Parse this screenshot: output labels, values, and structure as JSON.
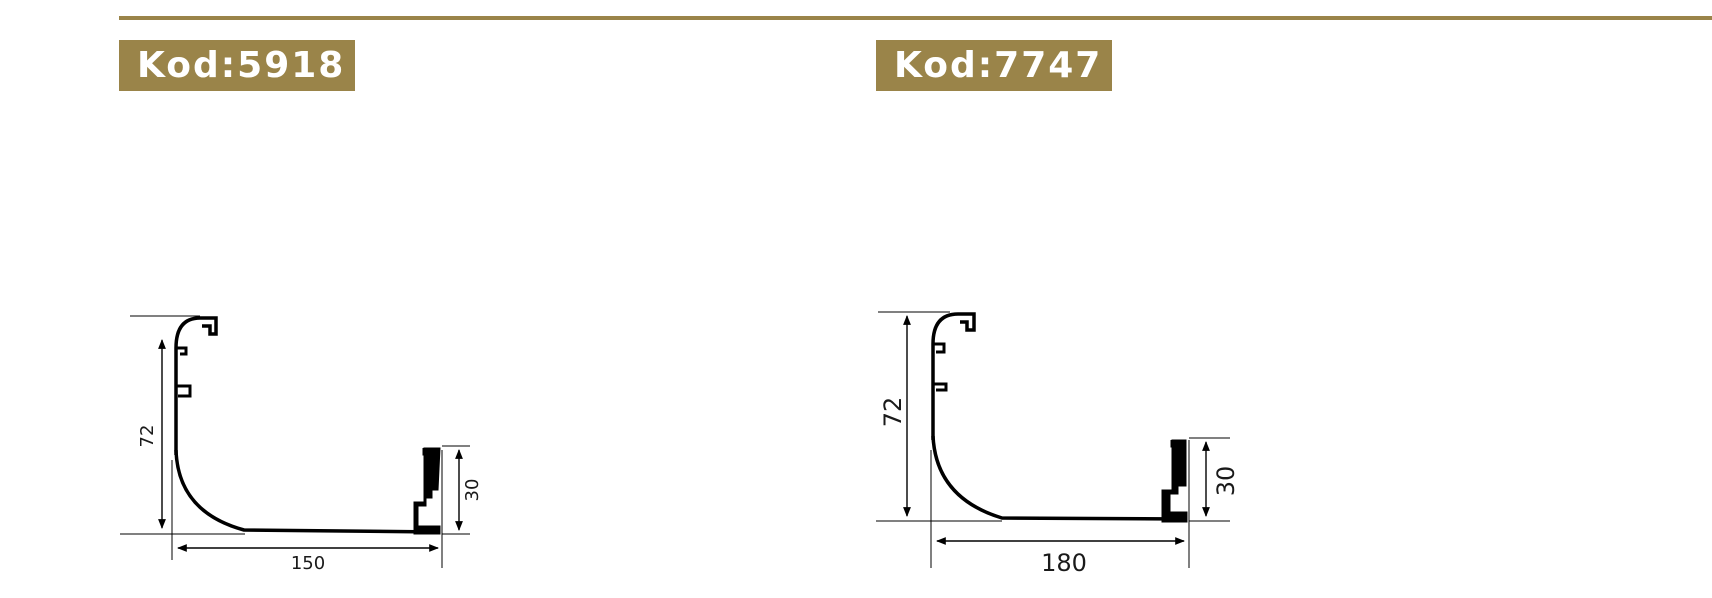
{
  "colors": {
    "accent": "#9a8449",
    "line": "#000000"
  },
  "profiles": [
    {
      "code": "Kod:5918",
      "height": "72",
      "width": "150",
      "lip": "30"
    },
    {
      "code": "Kod:7747",
      "height": "72",
      "width": "180",
      "lip": "30"
    }
  ]
}
